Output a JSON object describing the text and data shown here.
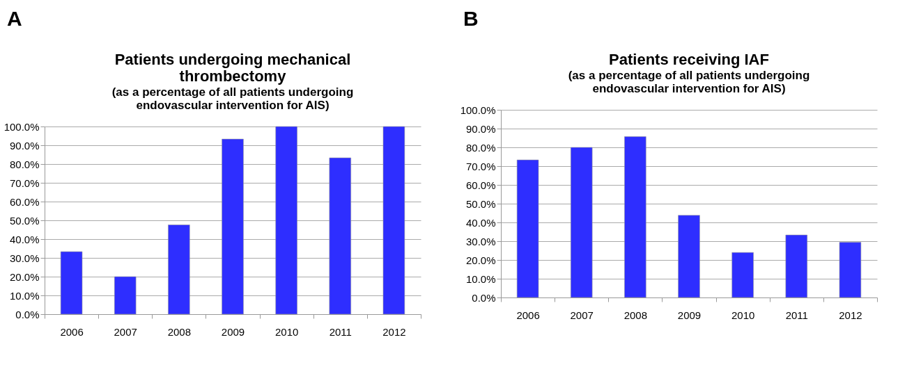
{
  "chart_data": [
    {
      "type": "bar",
      "title": "Patients undergoing mechanical thrombectomy",
      "subtitle": "(as a percentage of all patients undergoing endovascular intervention for AIS)",
      "annotations": [
        "A"
      ],
      "categories": [
        "2006",
        "2007",
        "2008",
        "2009",
        "2010",
        "2011",
        "2012"
      ],
      "values": [
        33.3,
        20,
        47.6,
        93.3,
        100,
        83.3,
        100
      ],
      "color": "#2e2eff",
      "ylim": [
        0,
        100
      ],
      "yticks": [
        {
          "value": 0,
          "label": "0.0%"
        },
        {
          "value": 10,
          "label": "10.0%"
        },
        {
          "value": 20,
          "label": "20.0%"
        },
        {
          "value": 30,
          "label": "30.0%"
        },
        {
          "value": 40,
          "label": "40.0%"
        },
        {
          "value": 50,
          "label": "50.0%"
        },
        {
          "value": 60,
          "label": "60.0%"
        },
        {
          "value": 70,
          "label": "70.0%"
        },
        {
          "value": 80,
          "label": "80.0%"
        },
        {
          "value": 90,
          "label": "90.0%"
        },
        {
          "value": 100,
          "label": "100.0%"
        }
      ],
      "grid": "y"
    },
    {
      "type": "bar",
      "title": "Patients receiving IAF",
      "subtitle": "(as a percentage of all patients undergoing endovascular intervention for AIS)",
      "annotations": [
        "B"
      ],
      "categories": [
        "2006",
        "2007",
        "2008",
        "2009",
        "2010",
        "2011",
        "2012"
      ],
      "values": [
        73.3,
        80,
        85.7,
        43.8,
        24,
        33.3,
        29.4
      ],
      "color": "#2e2eff",
      "ylim": [
        0,
        100
      ],
      "yticks": [
        {
          "value": 0,
          "label": "0.0%"
        },
        {
          "value": 10,
          "label": "10.0%"
        },
        {
          "value": 20,
          "label": "20.0%"
        },
        {
          "value": 30,
          "label": "30.0%"
        },
        {
          "value": 40,
          "label": "40.0%"
        },
        {
          "value": 50,
          "label": "50.0%"
        },
        {
          "value": 60,
          "label": "60.0%"
        },
        {
          "value": 70,
          "label": "70.0%"
        },
        {
          "value": 80,
          "label": "80.0%"
        },
        {
          "value": 90,
          "label": "90.0%"
        },
        {
          "value": 100,
          "label": "100.0%"
        }
      ],
      "grid": "y"
    }
  ]
}
